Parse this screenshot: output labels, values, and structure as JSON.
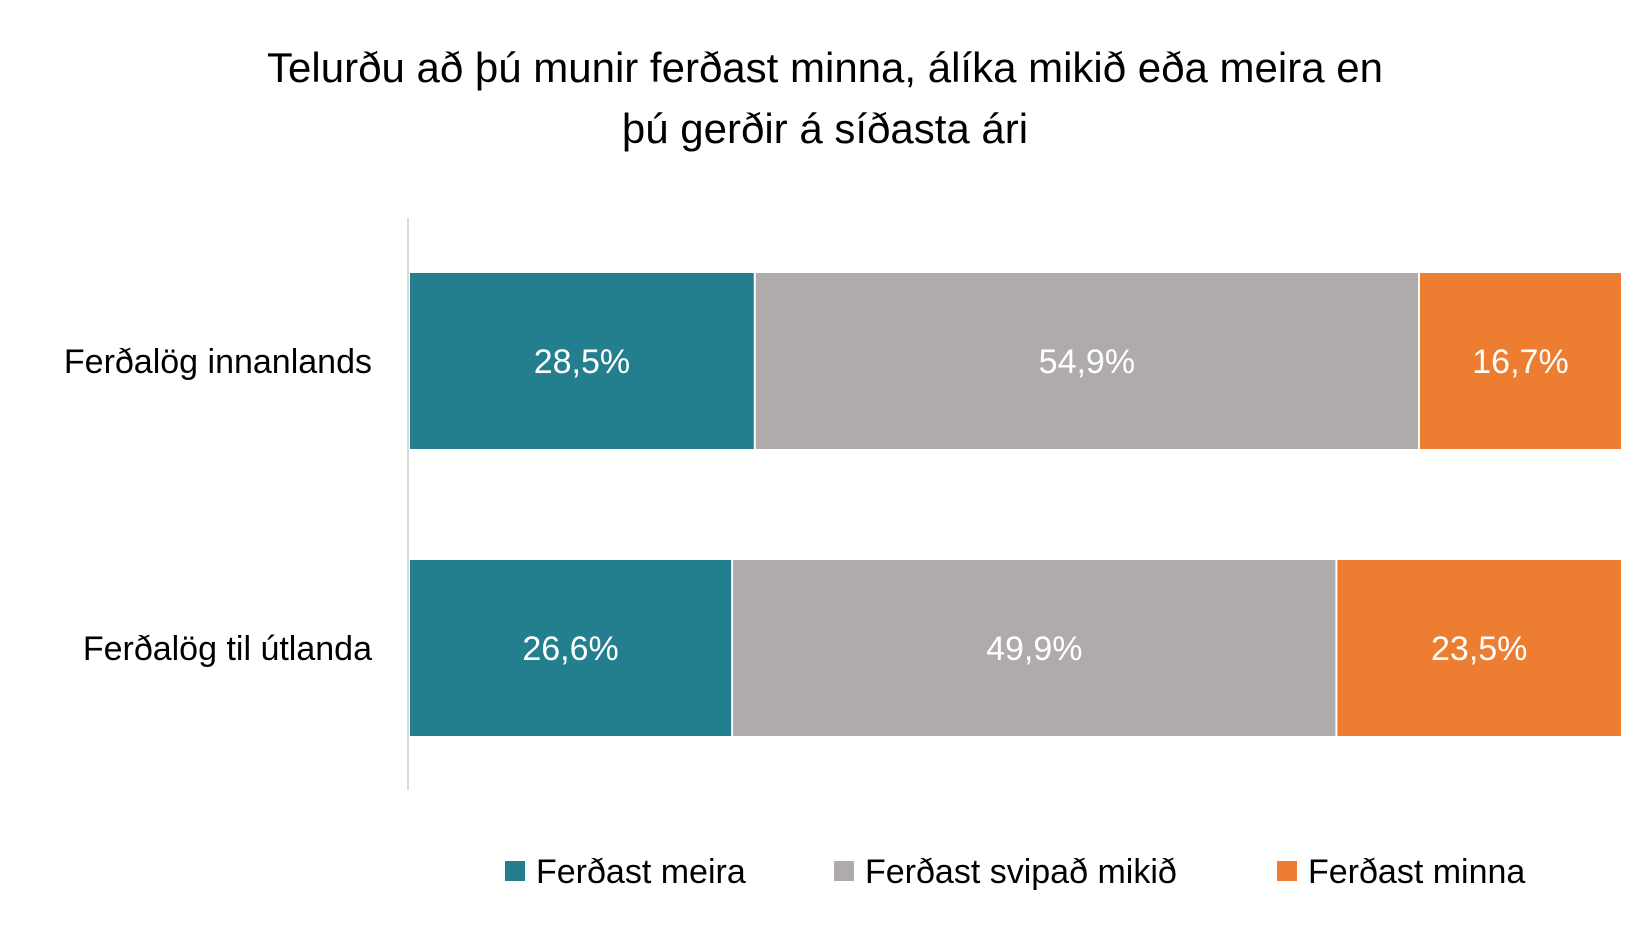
{
  "chart_data": {
    "type": "bar",
    "orientation": "horizontal",
    "stacked": "percent",
    "title_lines": [
      "Telurðu að þú munir ferðast minna, álíka mikið eða meira en",
      "þú gerðir á síðasta ári"
    ],
    "categories": [
      "Ferðalög innanlands",
      "Ferðalög til útlanda"
    ],
    "series": [
      {
        "name": "Ferðast meira",
        "color": "#237f8e",
        "values": [
          28.5,
          26.6
        ],
        "labels": [
          "28,5%",
          "26,6%"
        ]
      },
      {
        "name": "Ferðast svipað mikið",
        "color": "#afabaa",
        "values": [
          54.9,
          49.9
        ],
        "labels": [
          "54,9%",
          "49,9%"
        ]
      },
      {
        "name": "Ferðast minna",
        "color": "#ed7d31",
        "values": [
          16.7,
          23.5
        ],
        "labels": [
          "16,7%",
          "23,5%"
        ]
      }
    ],
    "xlim": [
      0,
      100
    ],
    "grid": false,
    "legend_position": "bottom"
  }
}
